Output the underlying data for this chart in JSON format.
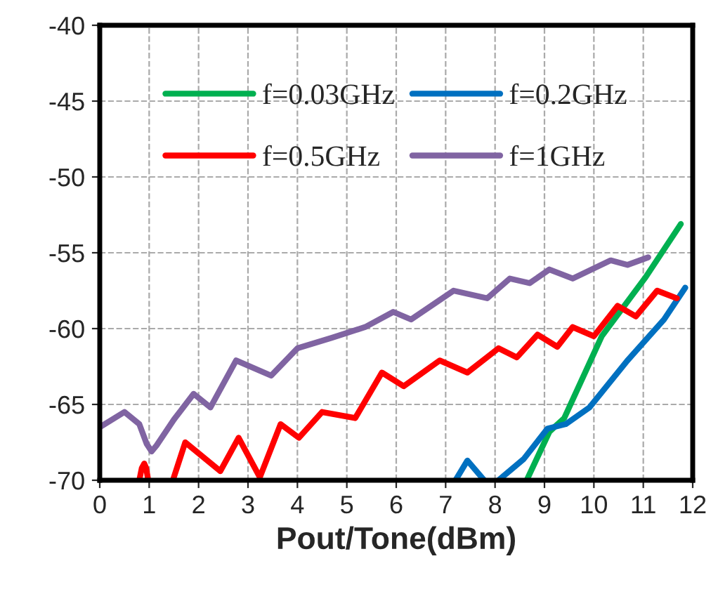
{
  "chart_data": {
    "type": "line",
    "xlabel": "Pout/Tone(dBm)",
    "xlim": [
      0,
      12
    ],
    "xticks": [
      0,
      1,
      2,
      3,
      4,
      5,
      6,
      7,
      8,
      9,
      10,
      11,
      12
    ],
    "ylim": [
      -70,
      -40
    ],
    "yticks": [
      -70,
      -65,
      -60,
      -55,
      -50,
      -45,
      -40
    ],
    "grid": true,
    "legend": "top",
    "line_style": "solid",
    "marker": "none",
    "series": [
      {
        "name": "f=0.03GHz",
        "color": "#00b050",
        "x": [
          8.64,
          9.1,
          9.4,
          10.16,
          11.05,
          11.76
        ],
        "values": [
          -70,
          -66.8,
          -65.9,
          -60.5,
          -56.6,
          -53.1
        ]
      },
      {
        "name": "f=0.2GHz",
        "color": "#0070c0",
        "x": [
          7.2,
          7.44,
          7.78,
          7.9,
          8.07,
          8.58,
          9.06,
          9.43,
          9.91,
          10.68,
          11.42,
          11.85
        ],
        "values": [
          -70,
          -68.7,
          -70,
          null,
          -70,
          -68.6,
          -66.6,
          -66.3,
          -65.2,
          -62.1,
          -59.4,
          -57.3
        ]
      },
      {
        "name": "f=0.5GHz",
        "color": "#ff0000",
        "x": [
          0.8,
          0.85,
          0.9,
          0.94,
          0.98,
          1.2,
          1.48,
          1.73,
          2.44,
          2.81,
          3.24,
          3.66,
          4.03,
          4.5,
          5.17,
          5.71,
          6.15,
          6.88,
          7.44,
          8.07,
          8.44,
          8.86,
          9.26,
          9.57,
          10.0,
          10.48,
          10.85,
          11.28,
          11.68
        ],
        "values": [
          -70,
          -69.2,
          -68.9,
          -69.2,
          -70,
          null,
          -70,
          -67.5,
          -69.4,
          -67.2,
          -69.8,
          -66.3,
          -67.2,
          -65.5,
          -65.9,
          -62.9,
          -63.8,
          -62.1,
          -62.9,
          -61.3,
          -61.9,
          -60.4,
          -61.2,
          -59.9,
          -60.5,
          -58.5,
          -59.2,
          -57.5,
          -58
        ]
      },
      {
        "name": "f=1GHz",
        "color": "#8064a2",
        "x": [
          0,
          0.5,
          0.8,
          0.95,
          1.05,
          1.15,
          1.5,
          1.9,
          2.24,
          2.76,
          3.47,
          4.0,
          4.7,
          5.37,
          5.94,
          6.3,
          7.16,
          7.84,
          8.3,
          8.7,
          9.1,
          9.57,
          10.34,
          10.68,
          11.1
        ],
        "values": [
          -66.5,
          -65.5,
          -66.3,
          -67.6,
          -68.1,
          -67.7,
          -66,
          -64.3,
          -65.2,
          -62.1,
          -63.1,
          -61.3,
          -60.6,
          -59.9,
          -58.9,
          -59.4,
          -57.5,
          -58,
          -56.7,
          -57,
          -56.1,
          -56.7,
          -55.5,
          -55.8,
          -55.3
        ]
      }
    ]
  }
}
